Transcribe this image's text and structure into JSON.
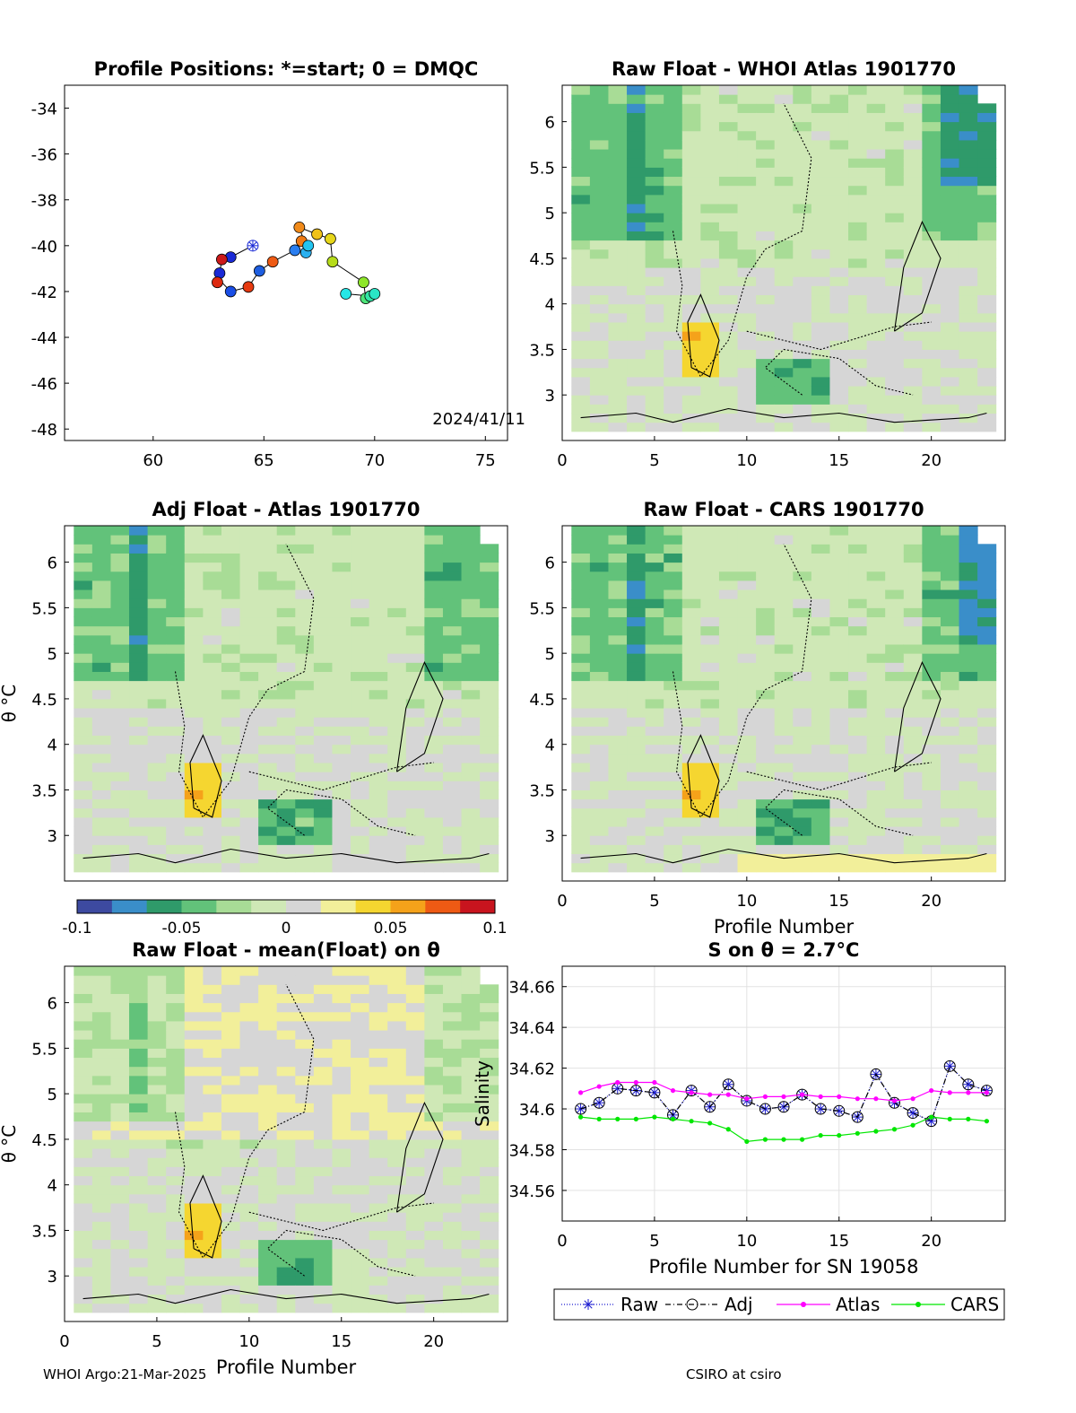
{
  "footer": {
    "left": "WHOI Argo:21-Mar-2025",
    "right": "CSIRO at csiro"
  },
  "colors": {
    "diverging": [
      "#3d4aa0",
      "#3a8ec9",
      "#2f9a6a",
      "#62c27a",
      "#a8dc96",
      "#cfe8b6",
      "#d6d6d6",
      "#f2ef9a",
      "#f5d630",
      "#f5a21a",
      "#ee5a14",
      "#c8141e"
    ],
    "raw": "#1a1ad0",
    "adj": "#000000",
    "atlas": "#ff00ff",
    "cars": "#00e600"
  },
  "chart_data": [
    {
      "type": "scatter",
      "title": "Profile Positions: *=start; 0 = DMQC",
      "xlim": [
        56,
        76
      ],
      "ylim": [
        -48.5,
        -33
      ],
      "xticks": [
        60,
        65,
        70,
        75
      ],
      "yticks": [
        -34,
        -36,
        -38,
        -40,
        -42,
        -44,
        -46,
        -48
      ],
      "annotation": "2024/41/11",
      "start": [
        64.5,
        -40.0
      ],
      "track": [
        [
          64.5,
          -40.0
        ],
        [
          63.5,
          -40.5
        ],
        [
          63.1,
          -40.6
        ],
        [
          63.0,
          -41.2
        ],
        [
          63.0,
          -41.5
        ],
        [
          63.5,
          -42.0
        ],
        [
          64.3,
          -41.8
        ],
        [
          64.8,
          -41.1
        ],
        [
          65.4,
          -40.7
        ],
        [
          66.4,
          -40.2
        ],
        [
          66.7,
          -39.8
        ],
        [
          67.0,
          -40.3
        ],
        [
          66.6,
          -39.2
        ],
        [
          67.4,
          -39.5
        ],
        [
          68.0,
          -39.7
        ],
        [
          68.1,
          -40.7
        ],
        [
          69.5,
          -41.6
        ],
        [
          69.6,
          -42.3
        ],
        [
          70.0,
          -42.1
        ],
        [
          69.8,
          -42.2
        ],
        [
          68.7,
          -42.1
        ]
      ],
      "points": [
        {
          "lon": 63.5,
          "lat": -40.5,
          "c": "#1a2ad6"
        },
        {
          "lon": 63.1,
          "lat": -40.6,
          "c": "#cc1a1a"
        },
        {
          "lon": 63.0,
          "lat": -41.2,
          "c": "#1a2ad6"
        },
        {
          "lon": 62.9,
          "lat": -41.6,
          "c": "#dd2a10"
        },
        {
          "lon": 63.5,
          "lat": -42.0,
          "c": "#1a4ee6"
        },
        {
          "lon": 64.3,
          "lat": -41.8,
          "c": "#e63a10"
        },
        {
          "lon": 64.8,
          "lat": -41.1,
          "c": "#1e5ee0"
        },
        {
          "lon": 65.4,
          "lat": -40.7,
          "c": "#ee5a14"
        },
        {
          "lon": 66.4,
          "lat": -40.2,
          "c": "#2a7ef0"
        },
        {
          "lon": 66.6,
          "lat": -39.2,
          "c": "#f08a1a"
        },
        {
          "lon": 66.7,
          "lat": -39.8,
          "c": "#f07a14"
        },
        {
          "lon": 66.9,
          "lat": -40.3,
          "c": "#2ab0f0"
        },
        {
          "lon": 67.0,
          "lat": -40.0,
          "c": "#22c4f0"
        },
        {
          "lon": 67.4,
          "lat": -39.5,
          "c": "#f0c21a"
        },
        {
          "lon": 68.0,
          "lat": -39.7,
          "c": "#e6d61a"
        },
        {
          "lon": 68.1,
          "lat": -40.7,
          "c": "#b6dc1a"
        },
        {
          "lon": 69.5,
          "lat": -41.6,
          "c": "#8ee62a"
        },
        {
          "lon": 69.6,
          "lat": -42.3,
          "c": "#4ee67a"
        },
        {
          "lon": 69.8,
          "lat": -42.2,
          "c": "#32e6a6"
        },
        {
          "lon": 70.0,
          "lat": -42.1,
          "c": "#2ae6c6"
        },
        {
          "lon": 68.7,
          "lat": -42.1,
          "c": "#26e6e6"
        }
      ]
    },
    {
      "type": "heatmap",
      "title": "Raw Float - WHOI Atlas  1901770",
      "xlim": [
        0,
        24
      ],
      "ylim": [
        2.5,
        6.4
      ],
      "xticks": [
        0,
        5,
        10,
        15,
        20
      ],
      "yticks": [
        3,
        3.5,
        4,
        4.5,
        5,
        5.5,
        6
      ],
      "xlabel": "",
      "ylabel": "",
      "clim": [
        -0.1,
        0.1
      ]
    },
    {
      "type": "heatmap",
      "title": "Adj Float - Atlas  1901770",
      "xlim": [
        0,
        24
      ],
      "ylim": [
        2.5,
        6.4
      ],
      "xticks": [],
      "yticks": [
        3,
        3.5,
        4,
        4.5,
        5,
        5.5,
        6
      ],
      "xlabel": "",
      "ylabel": "θ °C",
      "clim": [
        -0.1,
        0.1
      ],
      "colorbar": {
        "ticks": [
          "-0.1",
          "-0.05",
          "0",
          "0.05",
          "0.1"
        ],
        "range": [
          -0.1,
          0.1
        ]
      }
    },
    {
      "type": "heatmap",
      "title": "Raw Float - CARS  1901770",
      "xlim": [
        0,
        24
      ],
      "ylim": [
        2.5,
        6.4
      ],
      "xticks": [
        0,
        5,
        10,
        15,
        20
      ],
      "yticks": [
        3,
        3.5,
        4,
        4.5,
        5,
        5.5,
        6
      ],
      "xlabel": "Profile Number",
      "ylabel": "",
      "clim": [
        -0.1,
        0.1
      ]
    },
    {
      "type": "heatmap",
      "title": "Raw Float - mean(Float) on θ",
      "xlim": [
        0,
        24
      ],
      "ylim": [
        2.5,
        6.4
      ],
      "xticks": [
        0,
        5,
        10,
        15,
        20
      ],
      "yticks": [
        3,
        3.5,
        4,
        4.5,
        5,
        5.5,
        6
      ],
      "xlabel": "Profile Number",
      "ylabel": "θ °C",
      "clim": [
        -0.1,
        0.1
      ]
    },
    {
      "type": "line",
      "title": "S on θ = 2.7°C",
      "xlabel": "Profile Number for SN 19058",
      "ylabel": "Salinity",
      "xlim": [
        0,
        24
      ],
      "ylim": [
        34.545,
        34.67
      ],
      "xticks": [
        0,
        5,
        10,
        15,
        20
      ],
      "yticks": [
        34.56,
        34.58,
        34.6,
        34.62,
        34.64,
        34.66
      ],
      "grid": true,
      "legend": "bottom",
      "x": [
        1,
        2,
        3,
        4,
        5,
        6,
        7,
        8,
        9,
        10,
        11,
        12,
        13,
        14,
        15,
        16,
        17,
        18,
        19,
        20,
        21,
        22,
        23
      ],
      "series": [
        {
          "name": "Raw",
          "values": [
            34.6,
            34.603,
            34.61,
            34.609,
            34.608,
            34.597,
            34.609,
            34.601,
            34.612,
            34.604,
            34.6,
            34.601,
            34.607,
            34.6,
            34.599,
            34.596,
            34.617,
            34.603,
            34.598,
            34.594,
            34.621,
            34.612,
            34.609
          ]
        },
        {
          "name": "Adj",
          "values": [
            34.6,
            34.603,
            34.61,
            34.609,
            34.608,
            34.597,
            34.609,
            34.601,
            34.612,
            34.604,
            34.6,
            34.601,
            34.607,
            34.6,
            34.599,
            34.596,
            34.617,
            34.603,
            34.598,
            34.594,
            34.621,
            34.612,
            34.609
          ]
        },
        {
          "name": "Atlas",
          "values": [
            34.608,
            34.611,
            34.613,
            34.613,
            34.613,
            34.609,
            34.608,
            34.607,
            34.607,
            34.605,
            34.606,
            34.606,
            34.607,
            34.606,
            34.606,
            34.605,
            34.605,
            34.604,
            34.605,
            34.609,
            34.608,
            34.608,
            34.608
          ]
        },
        {
          "name": "CARS",
          "values": [
            34.596,
            34.595,
            34.595,
            34.595,
            34.596,
            34.595,
            34.594,
            34.593,
            34.59,
            34.584,
            34.585,
            34.585,
            34.585,
            34.587,
            34.587,
            34.588,
            34.589,
            34.59,
            34.592,
            34.596,
            34.595,
            34.595,
            34.594
          ]
        }
      ]
    }
  ]
}
